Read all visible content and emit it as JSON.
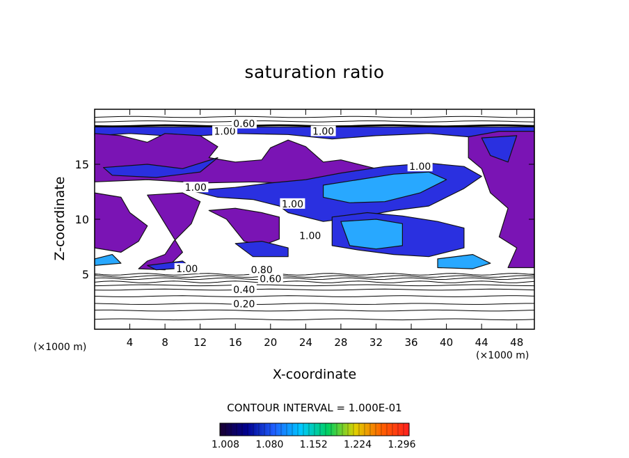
{
  "chart_data": {
    "type": "heatmap",
    "title": "saturation ratio",
    "xlabel": "X-coordinate",
    "ylabel": "Z-coordinate",
    "x_unit": "(×1000 m)",
    "y_unit": "(×1000 m)",
    "xlim": [
      0,
      50
    ],
    "ylim": [
      0,
      20
    ],
    "x_ticks": [
      "4",
      "8",
      "12",
      "16",
      "20",
      "24",
      "28",
      "32",
      "36",
      "40",
      "44",
      "48"
    ],
    "y_ticks": [
      "5",
      "10",
      "15"
    ],
    "contour_interval_text": "CONTOUR INTERVAL = 1.000E-01",
    "colorbar": {
      "ticks": [
        "1.008",
        "1.080",
        "1.152",
        "1.224",
        "1.296"
      ],
      "colors": [
        "#1a0030",
        "#000090",
        "#2060ff",
        "#00c8ff",
        "#00d060",
        "#e0d000",
        "#ff6000",
        "#ff2020"
      ]
    },
    "fill_colors": {
      "supersaturated_low": "#7a14b4",
      "supersaturated_mid": "#2a30e0",
      "supersaturated_high": "#28a8ff"
    },
    "contour_labels": [
      {
        "text": "0.20",
        "x": 17,
        "z": 2.3
      },
      {
        "text": "0.40",
        "x": 17,
        "z": 3.6
      },
      {
        "text": "0.60",
        "x": 20,
        "z": 4.6
      },
      {
        "text": "0.80",
        "x": 19,
        "z": 5.4
      },
      {
        "text": "1.00",
        "x": 10.5,
        "z": 5.5
      },
      {
        "text": "1.00",
        "x": 24.5,
        "z": 8.5
      },
      {
        "text": "1.00",
        "x": 22.5,
        "z": 11.4
      },
      {
        "text": "1.00",
        "x": 11.5,
        "z": 12.9
      },
      {
        "text": "1.00",
        "x": 37,
        "z": 14.8
      },
      {
        "text": "1.00",
        "x": 26,
        "z": 18
      },
      {
        "text": "1.00",
        "x": 14.8,
        "z": 18
      },
      {
        "text": "0.60",
        "x": 17,
        "z": 18.7
      }
    ]
  }
}
